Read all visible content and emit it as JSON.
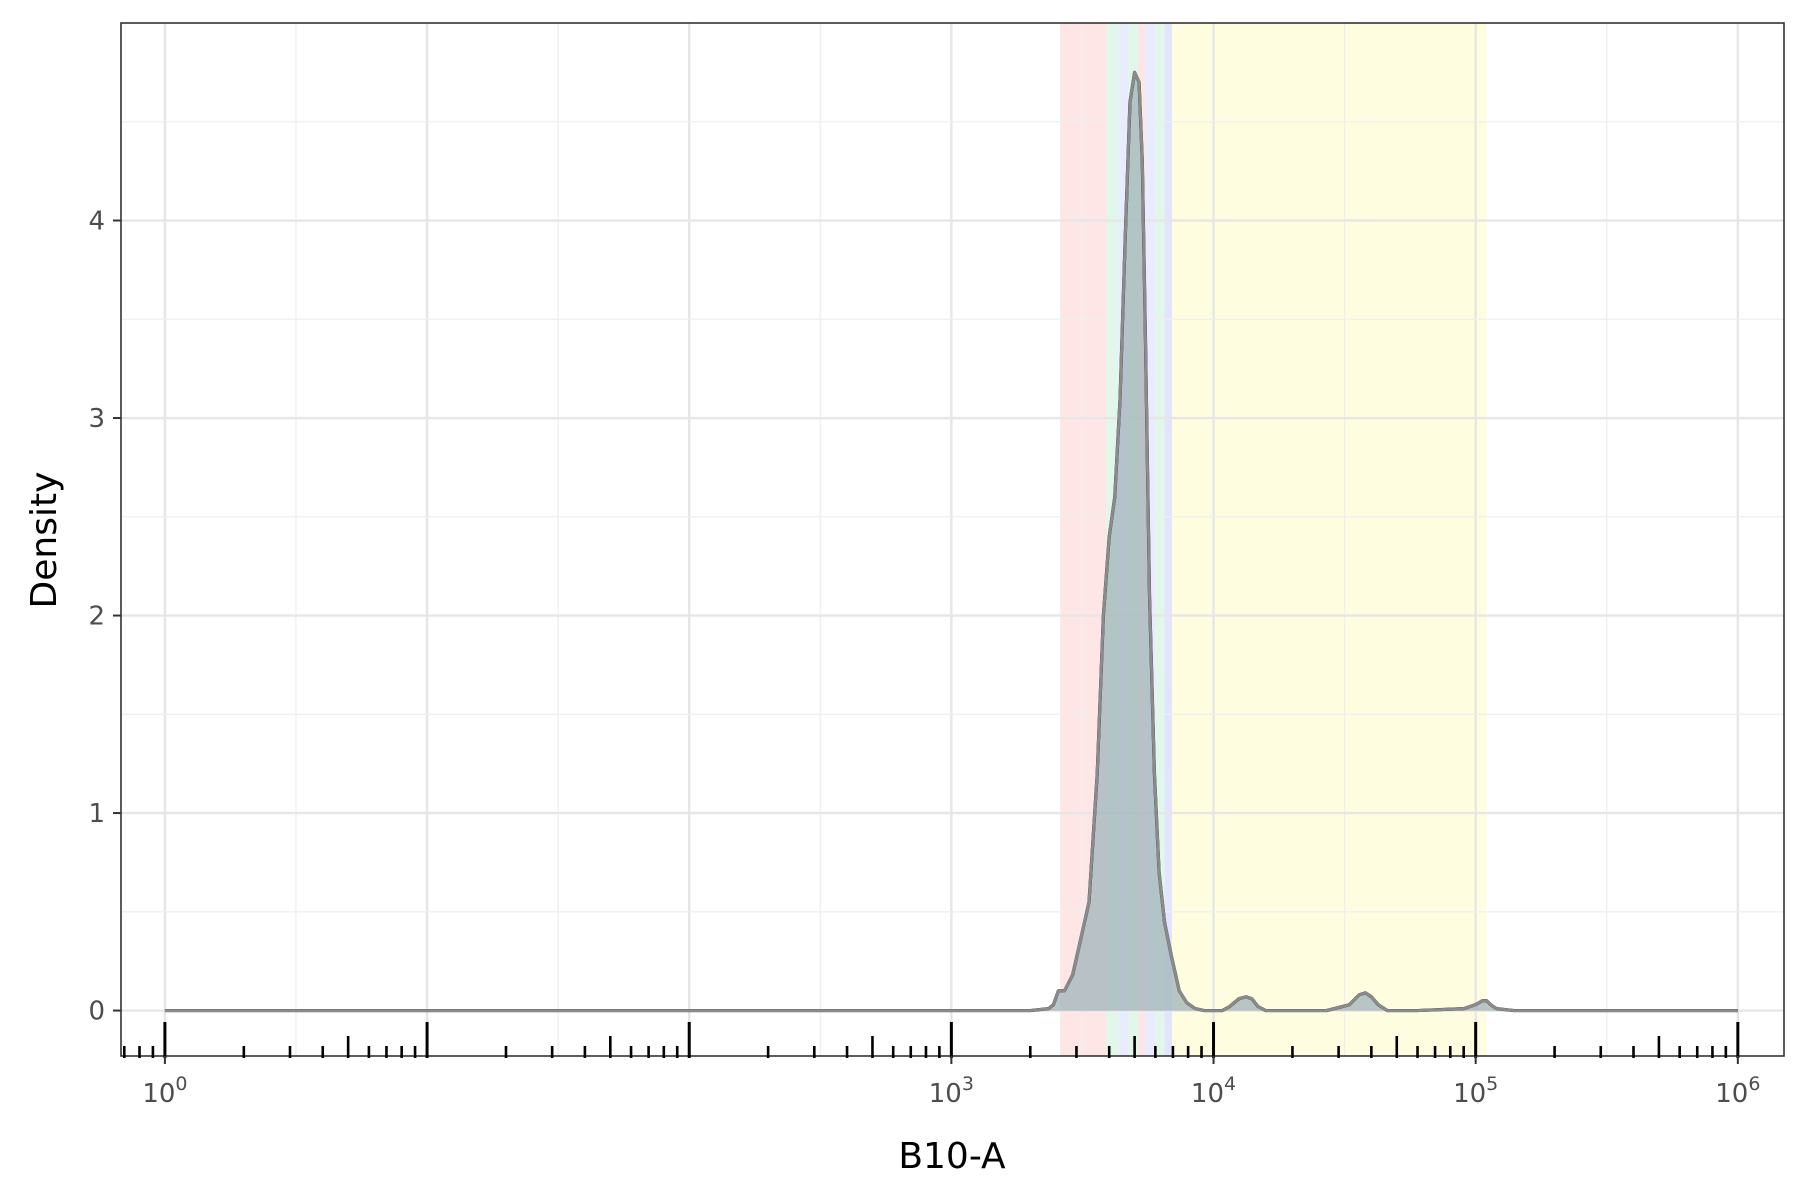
{
  "chart_data": {
    "type": "area",
    "title": "",
    "xlabel": "B10-A",
    "ylabel": "Density",
    "x_scale": "log10",
    "xlim": [
      0.68,
      1500000
    ],
    "ylim": [
      -0.23,
      5.0
    ],
    "grid": true,
    "legend": "none",
    "x_ticks": [
      {
        "value": 1,
        "base": "10",
        "exp": "0"
      },
      {
        "value": 1000,
        "base": "10",
        "exp": "3"
      },
      {
        "value": 10000,
        "base": "10",
        "exp": "4"
      },
      {
        "value": 100000,
        "base": "10",
        "exp": "5"
      },
      {
        "value": 1000000,
        "base": "10",
        "exp": "6"
      }
    ],
    "y_ticks": [
      {
        "value": 0,
        "label": "0"
      },
      {
        "value": 1,
        "label": "1"
      },
      {
        "value": 2,
        "label": "2"
      },
      {
        "value": 3,
        "label": "3"
      },
      {
        "value": 4,
        "label": "4"
      }
    ],
    "gate_bands": [
      {
        "from": 2600,
        "to": 3900,
        "color": "#ffd1d1"
      },
      {
        "from": 3900,
        "to": 4350,
        "color": "#c9f0d8"
      },
      {
        "from": 4350,
        "to": 4750,
        "color": "#d7dcff"
      },
      {
        "from": 4750,
        "to": 5150,
        "color": "#c9f0d8"
      },
      {
        "from": 5150,
        "to": 5500,
        "color": "#ffd1d1"
      },
      {
        "from": 5500,
        "to": 6000,
        "color": "#d7dcff"
      },
      {
        "from": 6000,
        "to": 6500,
        "color": "#c9f0d8"
      },
      {
        "from": 6500,
        "to": 6950,
        "color": "#c9cfff"
      },
      {
        "from": 6950,
        "to": 110000,
        "color": "#fffbc4"
      }
    ],
    "series": [
      {
        "colors": {
          "line": "#000000",
          "fill_a": "#7fa3e0",
          "fill_b": "#b9a0c8",
          "fill_c": "#a8cf9e",
          "overlay_line": "#9a9a9a"
        },
        "x": [
          1,
          2000,
          2350,
          2450,
          2560,
          2700,
          2900,
          3100,
          3350,
          3600,
          3800,
          4000,
          4200,
          4400,
          4600,
          4800,
          5000,
          5200,
          5350,
          5500,
          5700,
          5950,
          6200,
          6500,
          6900,
          7400,
          7900,
          8500,
          9200,
          10000,
          10800,
          11500,
          12500,
          13300,
          14000,
          14800,
          15800,
          17000,
          20000,
          27000,
          33000,
          36000,
          38000,
          40000,
          42500,
          46000,
          60000,
          90000,
          100000,
          106000,
          110000,
          114000,
          120000,
          140000,
          1000000
        ],
        "y": [
          0,
          0,
          0.01,
          0.03,
          0.1,
          0.1,
          0.18,
          0.35,
          0.55,
          1.2,
          2.0,
          2.4,
          2.6,
          3.1,
          3.9,
          4.6,
          4.75,
          4.7,
          4.3,
          3.4,
          2.1,
          1.2,
          0.7,
          0.45,
          0.28,
          0.1,
          0.04,
          0.01,
          0,
          0,
          0,
          0.02,
          0.06,
          0.07,
          0.06,
          0.02,
          0,
          0,
          0,
          0,
          0.03,
          0.08,
          0.09,
          0.07,
          0.03,
          0,
          0,
          0.01,
          0.03,
          0.05,
          0.05,
          0.03,
          0.01,
          0,
          0
        ]
      }
    ]
  }
}
